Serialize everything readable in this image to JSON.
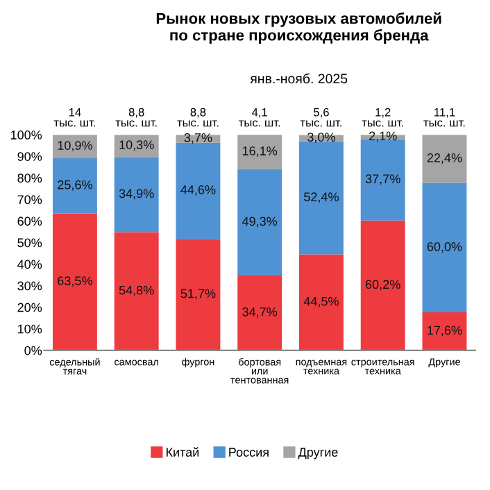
{
  "chart_data": {
    "type": "bar",
    "stacked": true,
    "title": "Рынок новых грузовых автомобилей\nпо стране происхождения бренда",
    "subtitle": "янв.-нояб. 2025",
    "categories": [
      "седельный\nтягач",
      "самосвал",
      "фургон",
      "бортовая\nили\nтентованная",
      "подъемная\nтехника",
      "строительная\nтехника",
      "Другие"
    ],
    "series": [
      {
        "name": "Китай",
        "color": "#ee3b3f",
        "values": [
          63.5,
          54.8,
          51.7,
          34.7,
          44.5,
          60.2,
          17.6
        ],
        "value_labels": [
          "63,5%",
          "54,8%",
          "51,7%",
          "34,7%",
          "44,5%",
          "60,2%",
          "17,6%"
        ]
      },
      {
        "name": "Россия",
        "color": "#4f93d4",
        "values": [
          25.6,
          34.9,
          44.6,
          49.3,
          52.4,
          37.7,
          60.0
        ],
        "value_labels": [
          "25,6%",
          "34,9%",
          "44,6%",
          "49,3%",
          "52,4%",
          "37,7%",
          "60,0%"
        ]
      },
      {
        "name": "Другие",
        "color": "#a5a5a5",
        "values": [
          10.9,
          10.3,
          3.7,
          16.1,
          3.0,
          2.1,
          22.4
        ],
        "value_labels": [
          "10,9%",
          "10,3%",
          "3,7%",
          "16,1%",
          "3,0%",
          "2,1%",
          "22,4%"
        ]
      }
    ],
    "annotations": [
      {
        "text": "14\nтыс. шт.",
        "x": "седельный\nтягач",
        "y": 100
      },
      {
        "text": "8,8\nтыс. шт.",
        "x": "самосвал",
        "y": 100
      },
      {
        "text": "8,8\nтыс. шт.",
        "x": "фургон",
        "y": 100
      },
      {
        "text": "4,1\nтыс. шт.",
        "x": "бортовая\nили\nтентованная",
        "y": 100
      },
      {
        "text": "5,6\nтыс. шт.",
        "x": "подъемная\nтехника",
        "y": 100
      },
      {
        "text": "1,2\nтыс. шт.",
        "x": "строительная\nтехника",
        "y": 100
      },
      {
        "text": "11,1\nтыс. шт.",
        "x": "Другие",
        "y": 100
      }
    ],
    "ylim": [
      0,
      100
    ],
    "yticks": [
      {
        "value": 0,
        "label": "0%"
      },
      {
        "value": 10,
        "label": "10%"
      },
      {
        "value": 20,
        "label": "20%"
      },
      {
        "value": 30,
        "label": "30%"
      },
      {
        "value": 40,
        "label": "40%"
      },
      {
        "value": 50,
        "label": "50%"
      },
      {
        "value": 60,
        "label": "60%"
      },
      {
        "value": 70,
        "label": "70%"
      },
      {
        "value": 80,
        "label": "80%"
      },
      {
        "value": 90,
        "label": "90%"
      },
      {
        "value": 100,
        "label": "100%"
      }
    ],
    "grid": false,
    "legend": "bottom"
  }
}
